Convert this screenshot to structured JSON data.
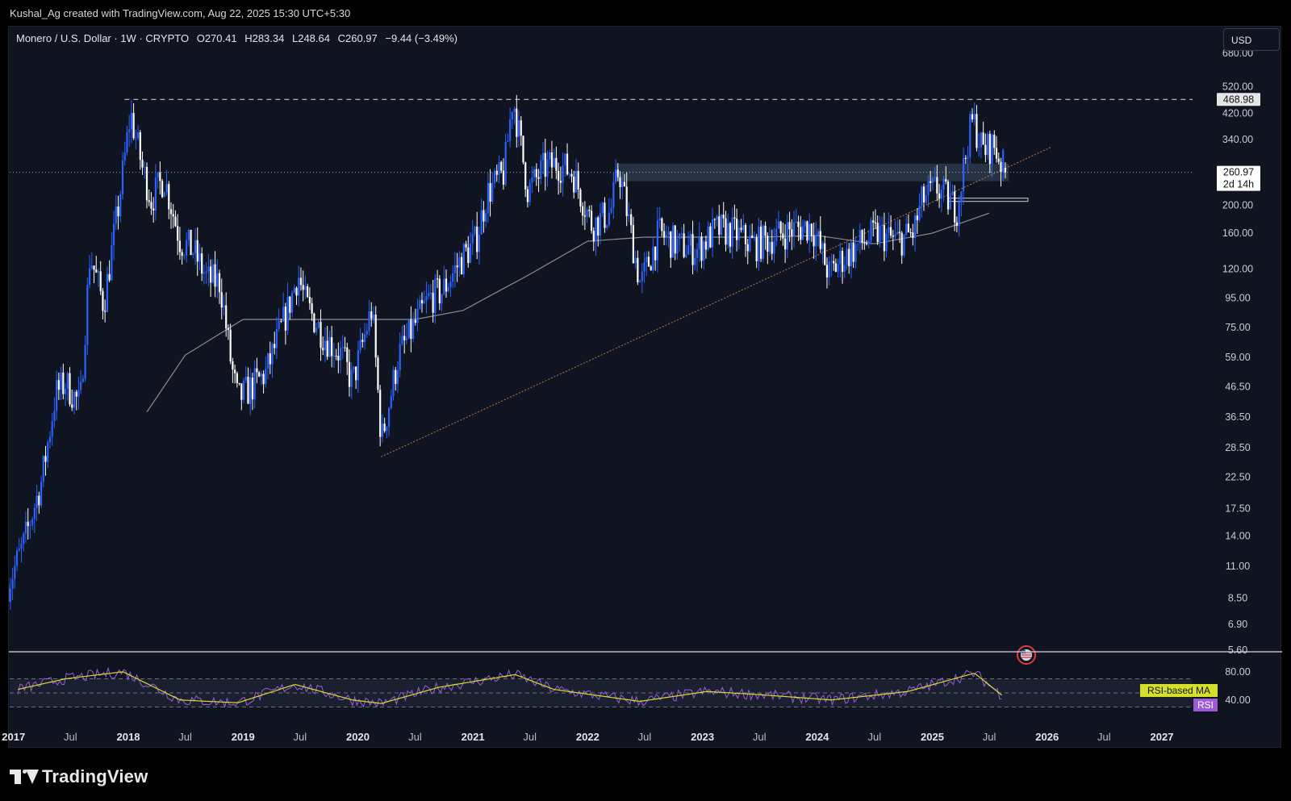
{
  "header": {
    "attribution": "Kushal_Ag created with TradingView.com, Aug 22, 2025 15:30 UTC+5:30"
  },
  "symbol_bar": {
    "name": "Monero / U.S. Dollar · 1W · CRYPTO",
    "open": "O270.41",
    "high": "H283.34",
    "low": "L248.64",
    "close": "C260.97",
    "change": "−9.44 (−3.49%)"
  },
  "currency_button": "USD",
  "price_axis": {
    "ticks": [
      "680.00",
      "520.00",
      "420.00",
      "340.00",
      "200.00",
      "160.00",
      "120.00",
      "95.00",
      "75.00",
      "59.00",
      "46.50",
      "36.50",
      "28.50",
      "22.50",
      "17.50",
      "14.00",
      "11.00",
      "8.50",
      "6.90",
      "5.60"
    ],
    "resistance_label": "468.98",
    "last_price_label": "260.97",
    "countdown_label": "2d 14h"
  },
  "rsi_panel": {
    "ticks": [
      "80.00",
      "40.00"
    ],
    "ma_label": "RSI-based MA",
    "rsi_label": "RSI"
  },
  "time_axis": [
    "2017",
    "Jul",
    "2018",
    "Jul",
    "2019",
    "Jul",
    "2020",
    "Jul",
    "2021",
    "Jul",
    "2022",
    "Jul",
    "2023",
    "Jul",
    "2024",
    "Jul",
    "2025",
    "Jul",
    "2026",
    "Jul",
    "2027"
  ],
  "colors": {
    "background": "#0f1420",
    "up_candle": "#2962ff",
    "down_candle": "#ffffff",
    "ma_line": "#8a8d96",
    "trendline": "#c07a3a",
    "rsi_line": "#9c5cd6",
    "rsi_ma": "#d6e02a",
    "box_fill": "#3d4a63"
  },
  "footer": {
    "brand": "TradingView"
  },
  "chart_data": {
    "type": "candlestick",
    "symbol": "Monero / U.S. Dollar",
    "interval": "1W",
    "exchange": "CRYPTO",
    "scale": "log",
    "ylim": [
      5.6,
      680
    ],
    "ohlc_last": {
      "open": 270.41,
      "high": 283.34,
      "low": 248.64,
      "close": 260.97,
      "change": -9.44,
      "change_pct": -3.49
    },
    "x_range": [
      "2016-12",
      "2027-03"
    ],
    "price_path": [
      [
        "2016-12-15",
        9.5
      ],
      [
        "2017-02-01",
        13
      ],
      [
        "2017-04-01",
        22
      ],
      [
        "2017-05-15",
        44
      ],
      [
        "2017-06-15",
        48
      ],
      [
        "2017-08-01",
        40
      ],
      [
        "2017-09-01",
        135
      ],
      [
        "2017-10-15",
        90
      ],
      [
        "2017-12-01",
        200
      ],
      [
        "2018-01-08",
        420
      ],
      [
        "2018-02-15",
        270
      ],
      [
        "2018-03-15",
        210
      ],
      [
        "2018-04-25",
        250
      ],
      [
        "2018-06-15",
        150
      ],
      [
        "2018-07-25",
        140
      ],
      [
        "2018-09-10",
        110
      ],
      [
        "2018-10-20",
        108
      ],
      [
        "2018-11-25",
        55
      ],
      [
        "2018-12-15",
        42
      ],
      [
        "2019-01-25",
        46
      ],
      [
        "2019-03-15",
        52
      ],
      [
        "2019-05-25",
        88
      ],
      [
        "2019-06-25",
        115
      ],
      [
        "2019-07-20",
        90
      ],
      [
        "2019-09-15",
        70
      ],
      [
        "2019-11-10",
        60
      ],
      [
        "2019-12-15",
        48
      ],
      [
        "2020-02-15",
        88
      ],
      [
        "2020-03-16",
        30
      ],
      [
        "2020-05-10",
        60
      ],
      [
        "2020-08-15",
        95
      ],
      [
        "2020-09-25",
        100
      ],
      [
        "2020-11-25",
        130
      ],
      [
        "2021-01-10",
        150
      ],
      [
        "2021-02-15",
        220
      ],
      [
        "2021-04-10",
        260
      ],
      [
        "2021-05-08",
        480
      ],
      [
        "2021-06-25",
        225
      ],
      [
        "2021-08-15",
        270
      ],
      [
        "2021-09-25",
        280
      ],
      [
        "2021-11-15",
        260
      ],
      [
        "2022-01-15",
        170
      ],
      [
        "2022-03-15",
        190
      ],
      [
        "2022-04-10",
        270
      ],
      [
        "2022-06-18",
        105
      ],
      [
        "2022-08-15",
        160
      ],
      [
        "2022-10-15",
        145
      ],
      [
        "2022-12-15",
        140
      ],
      [
        "2023-02-15",
        165
      ],
      [
        "2023-04-15",
        160
      ],
      [
        "2023-06-15",
        145
      ],
      [
        "2023-08-15",
        155
      ],
      [
        "2023-10-15",
        165
      ],
      [
        "2023-12-15",
        170
      ],
      [
        "2024-02-08",
        115
      ],
      [
        "2024-03-20",
        130
      ],
      [
        "2024-05-10",
        145
      ],
      [
        "2024-07-10",
        160
      ],
      [
        "2024-09-10",
        150
      ],
      [
        "2024-11-01",
        160
      ],
      [
        "2024-12-01",
        210
      ],
      [
        "2025-01-15",
        230
      ],
      [
        "2025-03-20",
        195
      ],
      [
        "2025-04-25",
        340
      ],
      [
        "2025-05-10",
        400
      ],
      [
        "2025-06-10",
        310
      ],
      [
        "2025-07-15",
        325
      ],
      [
        "2025-08-22",
        260.97
      ]
    ],
    "moving_average_path": [
      [
        "2018-03-01",
        38
      ],
      [
        "2018-07-01",
        60
      ],
      [
        "2019-01-01",
        80
      ],
      [
        "2019-07-01",
        80
      ],
      [
        "2020-01-01",
        80
      ],
      [
        "2020-07-01",
        80
      ],
      [
        "2020-12-01",
        86
      ],
      [
        "2021-07-01",
        115
      ],
      [
        "2022-01-01",
        150
      ],
      [
        "2022-07-01",
        155
      ],
      [
        "2023-01-01",
        155
      ],
      [
        "2023-07-01",
        155
      ],
      [
        "2024-01-01",
        157
      ],
      [
        "2024-07-01",
        147
      ],
      [
        "2025-01-01",
        160
      ],
      [
        "2025-07-01",
        188
      ]
    ],
    "horizontal_levels": [
      {
        "label": "468.98",
        "value": 468.98,
        "style": "dashed"
      },
      {
        "label": "260.97",
        "value": 260.97,
        "style": "dotted"
      }
    ],
    "zones": [
      {
        "from": "2022-04-01",
        "to": "2025-09-01",
        "low": 243,
        "high": 280
      }
    ],
    "trendline": {
      "from": [
        "2020-03-15",
        26.5
      ],
      "to": [
        "2026-01-15",
        320
      ]
    },
    "rsi": {
      "ma_label": "RSI-based MA",
      "levels": [
        70,
        50,
        30
      ],
      "ticks": [
        80,
        40
      ],
      "path": [
        [
          "2017-01",
          55
        ],
        [
          "2017-06",
          70
        ],
        [
          "2017-12",
          80
        ],
        [
          "2018-06",
          40
        ],
        [
          "2018-12",
          36
        ],
        [
          "2019-06",
          62
        ],
        [
          "2019-12",
          40
        ],
        [
          "2020-03",
          35
        ],
        [
          "2020-09",
          58
        ],
        [
          "2021-05",
          76
        ],
        [
          "2021-09",
          55
        ],
        [
          "2022-06",
          38
        ],
        [
          "2023-01",
          52
        ],
        [
          "2023-06",
          48
        ],
        [
          "2024-02",
          40
        ],
        [
          "2024-10",
          52
        ],
        [
          "2025-05",
          78
        ],
        [
          "2025-08",
          45
        ]
      ]
    }
  }
}
